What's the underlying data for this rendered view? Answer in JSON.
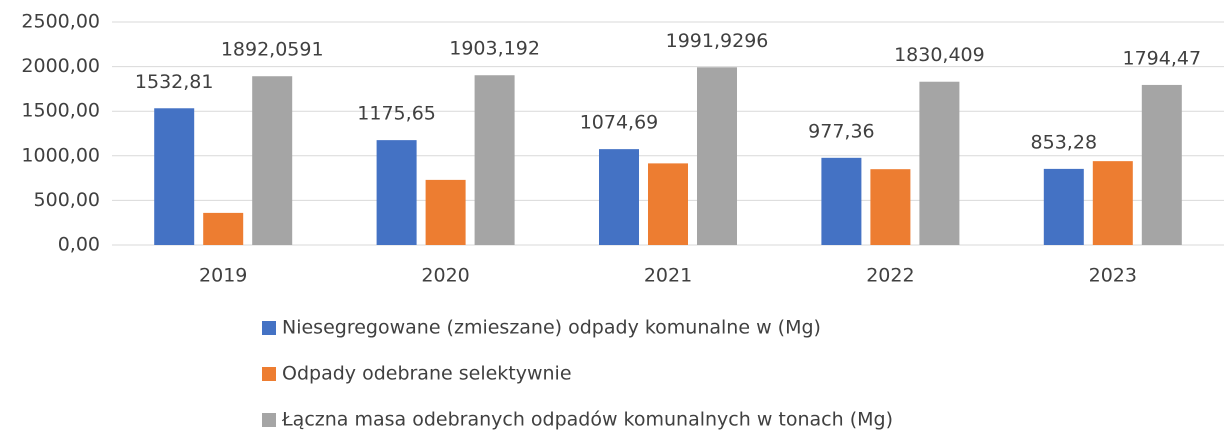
{
  "chart_data": {
    "type": "bar",
    "categories": [
      "2019",
      "2020",
      "2021",
      "2022",
      "2023"
    ],
    "series": [
      {
        "name": "Niesegregowane (zmieszane) odpady komunalne w (Mg)",
        "color": "#4472c4",
        "values": [
          1532.81,
          1175.65,
          1074.69,
          977.36,
          853.28
        ],
        "value_labels": [
          "1532,81",
          "1175,65",
          "1074,69",
          "977,36",
          "853,28"
        ]
      },
      {
        "name": "Odpady odebrane selektywnie",
        "color": "#ed7d31",
        "values": [
          360,
          730,
          915,
          850,
          940
        ]
      },
      {
        "name": "Łączna masa odebranych odpadów komunalnych w tonach (Mg)",
        "color": "#a5a5a5",
        "values": [
          1892.0591,
          1903.192,
          1991.9296,
          1830.409,
          1794.47
        ],
        "value_labels": [
          "1892,0591",
          "1903,192",
          "1991,9296",
          "1830,409",
          "1794,47"
        ]
      }
    ],
    "ylim": [
      0,
      2500
    ],
    "yticks": [
      {
        "value": 0,
        "label": "0,00"
      },
      {
        "value": 500,
        "label": "500,00"
      },
      {
        "value": 1000,
        "label": "1000,00"
      },
      {
        "value": 1500,
        "label": "1500,00"
      },
      {
        "value": 2000,
        "label": "2000,00"
      },
      {
        "value": 2500,
        "label": "2500,00"
      }
    ],
    "grid": true
  }
}
